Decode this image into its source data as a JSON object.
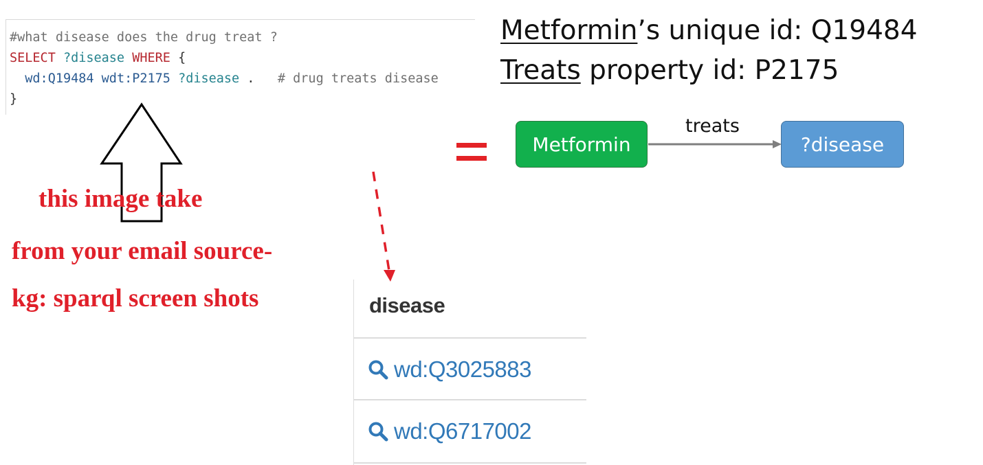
{
  "code": {
    "comment_line": "#what disease does the drug treat ?",
    "select_kw": "SELECT",
    "select_var": "?disease",
    "where_kw": "WHERE",
    "open_brace": "{",
    "subject": "wd:Q19484",
    "predicate": "wdt:P2175",
    "object_var": "?disease",
    "dot": " .",
    "inline_comment": "# drug treats disease",
    "close_brace": "}"
  },
  "annotation": {
    "line1": "this image take",
    "line2": "from your email source-",
    "line3": "kg: sparql screen shots"
  },
  "info": {
    "metformin_word": "Metformin",
    "line1_rest": "’s unique id:  Q19484",
    "treats_word": "Treats",
    "line2_rest": " property id: P2175"
  },
  "graph": {
    "source_node": "Metformin",
    "edge_label": "treats",
    "target_node": "?disease"
  },
  "results": {
    "column_header": "disease",
    "rows": [
      "wd:Q3025883",
      "wd:Q6717002"
    ]
  },
  "colors": {
    "annotation_red": "#e0202a",
    "source_node_green": "#12b04d",
    "target_node_blue": "#5b9bd5",
    "result_link_blue": "#3179b8"
  },
  "icons": [
    "search-icon",
    "up-arrow-outline",
    "dashed-down-arrow"
  ]
}
